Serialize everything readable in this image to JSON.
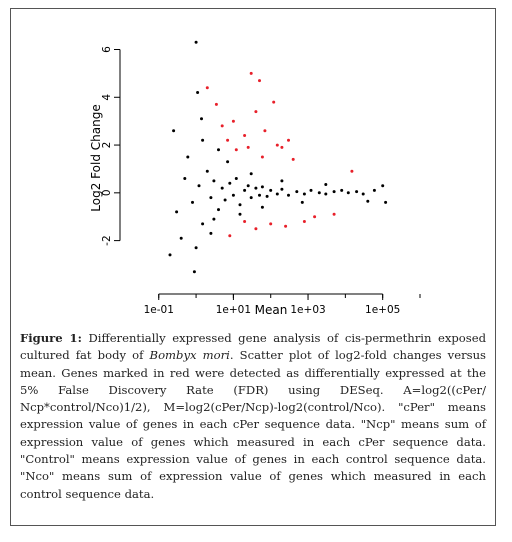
{
  "chart_data": {
    "type": "scatter",
    "title": "",
    "xlabel": "Mean",
    "ylabel": "Log2 Fold Change",
    "x_scale": "log10",
    "xlim": [
      0.015,
      1000000
    ],
    "ylim": [
      -3.9,
      6.9
    ],
    "x_ticks": [
      {
        "value": 0.1,
        "label": "1e-01"
      },
      {
        "value": 10,
        "label": "1e+01"
      },
      {
        "value": 1000,
        "label": "1e+03"
      },
      {
        "value": 100000,
        "label": "1e+05"
      }
    ],
    "y_ticks": [
      {
        "value": -2,
        "label": "-2"
      },
      {
        "value": 0,
        "label": "0"
      },
      {
        "value": 2,
        "label": "2"
      },
      {
        "value": 4,
        "label": "4"
      },
      {
        "value": 6,
        "label": "6"
      }
    ],
    "grid": false,
    "legend": "none",
    "series": [
      {
        "color": "#000000",
        "points": [
          [
            0.3,
            -0.8
          ],
          [
            0.5,
            0.6
          ],
          [
            0.8,
            -0.4
          ],
          [
            1.2,
            0.3
          ],
          [
            1.5,
            -1.3
          ],
          [
            2,
            0.9
          ],
          [
            2.5,
            -0.2
          ],
          [
            3,
            0.5
          ],
          [
            4,
            -0.7
          ],
          [
            5,
            0.2
          ],
          [
            6,
            -0.3
          ],
          [
            8,
            0.4
          ],
          [
            10,
            -0.1
          ],
          [
            12,
            0.6
          ],
          [
            15,
            -0.5
          ],
          [
            20,
            0.1
          ],
          [
            25,
            0.3
          ],
          [
            30,
            -0.2
          ],
          [
            40,
            0.2
          ],
          [
            50,
            -0.1
          ],
          [
            60,
            0.25
          ],
          [
            80,
            -0.15
          ],
          [
            100,
            0.1
          ],
          [
            150,
            -0.05
          ],
          [
            200,
            0.15
          ],
          [
            300,
            -0.1
          ],
          [
            500,
            0.05
          ],
          [
            800,
            -0.05
          ],
          [
            1200,
            0.1
          ],
          [
            2000,
            0.0
          ],
          [
            3000,
            -0.05
          ],
          [
            5000,
            0.05
          ],
          [
            8000,
            0.1
          ],
          [
            12000,
            0.0
          ],
          [
            20000,
            0.05
          ],
          [
            30000,
            -0.05
          ],
          [
            60000,
            0.1
          ],
          [
            0.6,
            1.5
          ],
          [
            1.5,
            2.2
          ],
          [
            4,
            1.8
          ],
          [
            0.4,
            -1.9
          ],
          [
            1,
            -2.3
          ],
          [
            2.5,
            -1.7
          ],
          [
            0.25,
            2.6
          ],
          [
            0.2,
            -2.6
          ],
          [
            1.4,
            3.1
          ],
          [
            1.1,
            4.2
          ],
          [
            0.9,
            -3.3
          ],
          [
            1.0,
            6.3
          ],
          [
            3,
            -1.1
          ],
          [
            7,
            1.3
          ],
          [
            15,
            -0.9
          ],
          [
            30,
            0.8
          ],
          [
            60,
            -0.6
          ],
          [
            200,
            0.5
          ],
          [
            700,
            -0.4
          ],
          [
            3000,
            0.35
          ],
          [
            40000,
            -0.35
          ],
          [
            100000,
            0.3
          ],
          [
            120000,
            -0.4
          ]
        ]
      },
      {
        "color": "#e8202a",
        "points": [
          [
            2,
            4.4
          ],
          [
            3.5,
            3.7
          ],
          [
            5,
            2.8
          ],
          [
            7,
            2.2
          ],
          [
            10,
            3.0
          ],
          [
            20,
            2.4
          ],
          [
            40,
            3.4
          ],
          [
            50,
            4.7
          ],
          [
            70,
            2.6
          ],
          [
            120,
            3.8
          ],
          [
            200,
            1.9
          ],
          [
            300,
            2.2
          ],
          [
            30,
            5.0
          ],
          [
            12,
            1.8
          ],
          [
            150,
            2.0
          ],
          [
            25,
            1.9
          ],
          [
            60,
            1.5
          ],
          [
            400,
            1.4
          ],
          [
            8,
            -1.8
          ],
          [
            20,
            -1.2
          ],
          [
            40,
            -1.5
          ],
          [
            100,
            -1.3
          ],
          [
            250,
            -1.4
          ],
          [
            800,
            -1.2
          ],
          [
            1500,
            -1.0
          ],
          [
            5000,
            -0.9
          ],
          [
            15000,
            0.9
          ]
        ]
      }
    ]
  },
  "figure_caption": {
    "label": "Figure 1:",
    "text_part1": " Differentially expressed gene analysis of cis-permethrin exposed cultured fat body of ",
    "species": "Bombyx mori",
    "text_part2": ". Scatter plot of log2-fold changes versus mean. Genes marked in red were detected as differentially expressed at the 5% False Discovery Rate (FDR) using DESeq. A=log2((cPer/ Ncp*control/Nco)1/2), M=log2(cPer/Ncp)-log2(control/Nco). \"cPer\" means expression value of genes in each cPer sequence data. \"Ncp\" means sum of expression value of genes which measured in each cPer sequence data. \"Control\" means expression value of genes in each control sequence data. \"Nco\" means sum of expression value of genes which measured in each control sequence data."
  }
}
